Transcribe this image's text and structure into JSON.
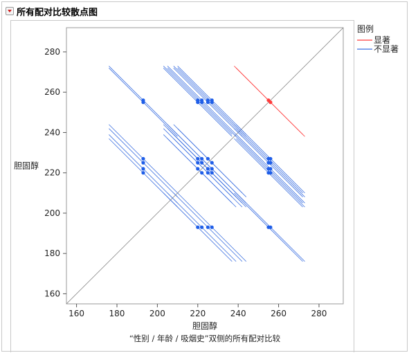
{
  "title": "所有配对比较散点图",
  "chart_data": {
    "type": "scatter",
    "title": "所有配对比较散点图",
    "xlabel": "胆固醇",
    "ylabel": "胆固醇",
    "caption": "“性别 / 年龄 / 吸烟史”双侧的所有配对比较",
    "xlim": [
      155,
      292
    ],
    "ylim": [
      155,
      292
    ],
    "x_ticks": [
      160,
      180,
      200,
      220,
      240,
      260,
      280
    ],
    "y_ticks": [
      160,
      180,
      200,
      220,
      240,
      260,
      280
    ],
    "levels": [
      193,
      220,
      222,
      225,
      227,
      255,
      256
    ],
    "legend": {
      "title": "图例",
      "position": "right",
      "items": [
        {
          "label": "显著",
          "color": "#ff3b3b"
        },
        {
          "label": "不显著",
          "color": "#3b6fe0"
        }
      ]
    },
    "diagonal": true,
    "significant_pairs": [
      [
        255,
        256
      ]
    ],
    "half_length": 24,
    "colors": {
      "significant": "#ff3b3b",
      "not_significant": "#3b6fe0",
      "point_not_significant": "#1f5ee8",
      "diagonal": "#888888"
    }
  }
}
